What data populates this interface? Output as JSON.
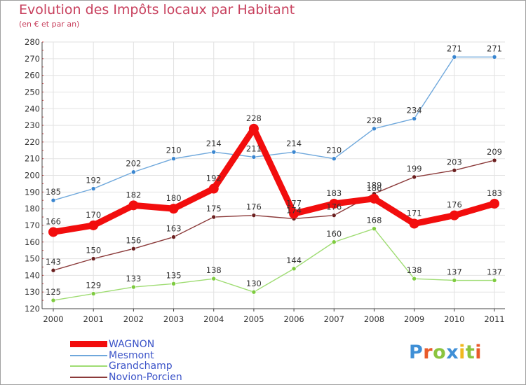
{
  "header": {
    "title": "Evolution des Impôts locaux par Habitant",
    "subtitle": "(en € et par an)"
  },
  "logo": {
    "text": "Proxiti",
    "letters": [
      {
        "ch": "P",
        "color": "#3f8fd6"
      },
      {
        "ch": "r",
        "color": "#e85a2a"
      },
      {
        "ch": "o",
        "color": "#8bc43f"
      },
      {
        "ch": "x",
        "color": "#3f8fd6"
      },
      {
        "ch": "i",
        "color": "#f0b81e"
      },
      {
        "ch": "t",
        "color": "#8bc43f"
      },
      {
        "ch": "i",
        "color": "#e85a2a"
      }
    ]
  },
  "chart_data": {
    "type": "line",
    "title": "Evolution des Impôts locaux par Habitant",
    "subtitle": "(en € et par an)",
    "xlabel": "",
    "ylabel": "",
    "ylim": [
      120,
      280
    ],
    "yticks": [
      120,
      130,
      140,
      150,
      160,
      170,
      180,
      190,
      200,
      210,
      220,
      230,
      240,
      250,
      260,
      270,
      280
    ],
    "grid": true,
    "legend": "bottom-left",
    "categories": [
      "2000",
      "2001",
      "2002",
      "2003",
      "2004",
      "2005",
      "2006",
      "2007",
      "2008",
      "2009",
      "2010",
      "2011"
    ],
    "series": [
      {
        "name": "Mesmont",
        "color": "#6fa8dc",
        "marker": "#3a86d0",
        "values": [
          185,
          192,
          202,
          210,
          214,
          211,
          214,
          210,
          228,
          234,
          271,
          271
        ]
      },
      {
        "name": "Grandchamp",
        "color": "#9fdc73",
        "marker": "#7ecb3f",
        "values": [
          125,
          129,
          133,
          135,
          138,
          130,
          144,
          160,
          168,
          138,
          137,
          137
        ]
      },
      {
        "name": "Novion-Porcien",
        "color": "#8b3a3a",
        "marker": "#6b1f1f",
        "values": [
          143,
          150,
          156,
          163,
          175,
          176,
          174,
          176,
          189,
          199,
          203,
          209
        ]
      },
      {
        "name": "WAGNON",
        "color": "#f20d0d",
        "marker": "#f20d0d",
        "values": [
          166,
          170,
          182,
          180,
          192,
          228,
          177,
          183,
          186,
          171,
          176,
          183
        ]
      }
    ],
    "legend_order": [
      "WAGNON",
      "Mesmont",
      "Grandchamp",
      "Novion-Porcien"
    ]
  }
}
